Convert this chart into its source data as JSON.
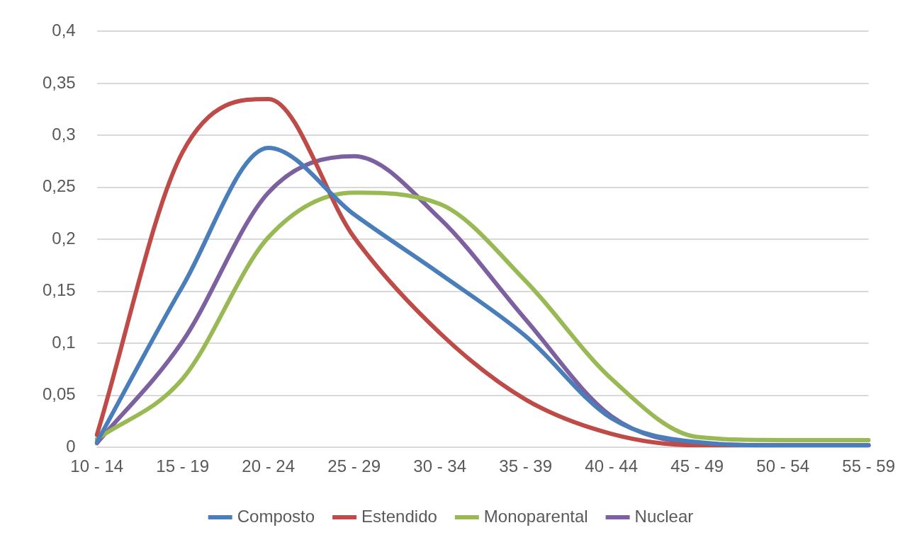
{
  "chart_data": {
    "type": "line",
    "categories": [
      "10 - 14",
      "15 - 19",
      "20 - 24",
      "25 - 29",
      "30 - 34",
      "35 - 39",
      "40 - 44",
      "45 - 49",
      "50 - 54",
      "55 - 59"
    ],
    "series": [
      {
        "name": "Composto",
        "color": "#4a7ebb",
        "values": [
          0.005,
          0.155,
          0.288,
          0.224,
          0.167,
          0.107,
          0.028,
          0.005,
          0.002,
          0.002
        ]
      },
      {
        "name": "Estendido",
        "color": "#be4b48",
        "values": [
          0.012,
          0.284,
          0.335,
          0.202,
          0.11,
          0.046,
          0.013,
          0.002,
          null,
          0.002
        ]
      },
      {
        "name": "Monoparental",
        "color": "#98b954",
        "values": [
          0.008,
          0.066,
          0.202,
          0.245,
          0.234,
          0.16,
          0.066,
          0.01,
          0.007,
          0.007
        ]
      },
      {
        "name": "Nuclear",
        "color": "#7d60a0",
        "values": [
          0.004,
          0.102,
          0.245,
          0.28,
          0.22,
          0.123,
          0.03,
          0.004,
          0.002,
          0.002
        ]
      }
    ],
    "ylim": [
      0,
      0.4
    ],
    "yticks": [
      {
        "value": 0,
        "label": "0"
      },
      {
        "value": 0.05,
        "label": "0,05"
      },
      {
        "value": 0.1,
        "label": "0,1"
      },
      {
        "value": 0.15,
        "label": "0,15"
      },
      {
        "value": 0.2,
        "label": "0,2"
      },
      {
        "value": 0.25,
        "label": "0,25"
      },
      {
        "value": 0.3,
        "label": "0,3"
      },
      {
        "value": 0.35,
        "label": "0,35"
      },
      {
        "value": 0.4,
        "label": "0,4"
      }
    ],
    "grid": "y",
    "legend": "bottom",
    "marker": "none",
    "line_style": "solid"
  }
}
